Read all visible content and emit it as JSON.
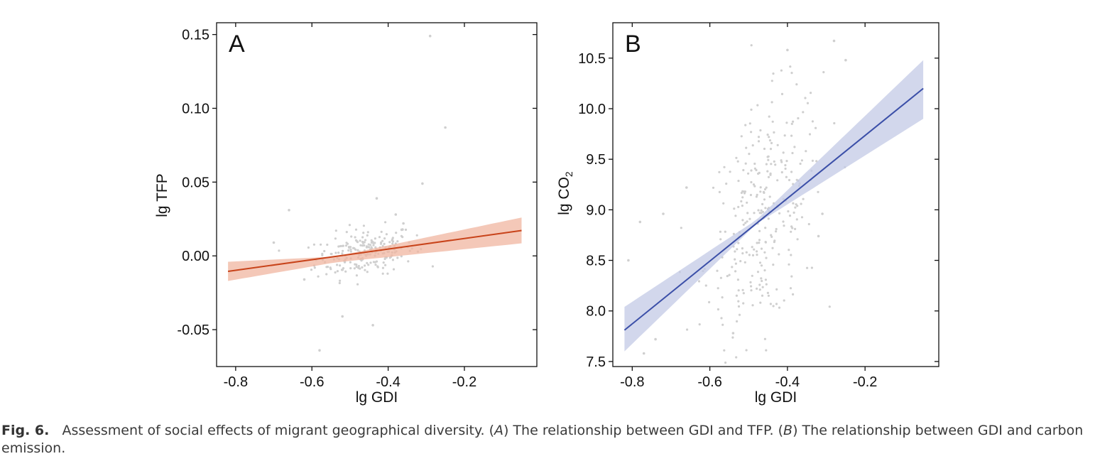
{
  "caption": {
    "label": "Fig. 6.",
    "part1": "Assessment of social effects of migrant geographical diversity. (",
    "tag_a": "A",
    "part2": ") The relationship between GDI and TFP. (",
    "tag_b": "B",
    "part3": ") The relationship between GDI and carbon emission."
  },
  "chart_data": [
    {
      "type": "scatter",
      "panel_label": "A",
      "xlabel": "lg GDI",
      "ylabel": "lg TFP",
      "ylabel_subscript": "",
      "xlim": [
        -0.85,
        -0.01
      ],
      "ylim": [
        -0.075,
        0.158
      ],
      "x_ticks": [
        -0.8,
        -0.6,
        -0.4,
        -0.2
      ],
      "x_tick_labels": [
        "-0.8",
        "-0.6",
        "-0.4",
        "-0.2"
      ],
      "y_ticks": [
        -0.05,
        0.0,
        0.05,
        0.1,
        0.15
      ],
      "y_tick_labels": [
        "-0.05",
        "0.00",
        "0.05",
        "0.10",
        "0.15"
      ],
      "fit_line": {
        "x": [
          -0.82,
          -0.05
        ],
        "y": [
          -0.0105,
          0.0172
        ],
        "color": "#c8431a"
      },
      "confidence_band": {
        "x": [
          -0.82,
          -0.54,
          -0.05
        ],
        "lower": [
          -0.017,
          -0.0045,
          0.0085
        ],
        "upper": [
          -0.004,
          -0.0005,
          0.026
        ],
        "color": "#f0b5a0"
      },
      "points_color": "#cfcfcf",
      "cluster": {
        "center": [
          -0.46,
          0.0
        ],
        "spread": [
          0.065,
          0.008
        ],
        "count": 220
      },
      "points": [
        {
          "x": -0.29,
          "y": 0.149
        },
        {
          "x": -0.25,
          "y": 0.087
        },
        {
          "x": -0.31,
          "y": 0.049
        },
        {
          "x": -0.66,
          "y": 0.031
        },
        {
          "x": -0.43,
          "y": 0.039
        },
        {
          "x": -0.38,
          "y": 0.028
        },
        {
          "x": -0.52,
          "y": -0.041
        },
        {
          "x": -0.44,
          "y": -0.047
        },
        {
          "x": -0.58,
          "y": -0.064
        },
        {
          "x": -0.7,
          "y": 0.009
        },
        {
          "x": -0.62,
          "y": -0.016
        },
        {
          "x": -0.36,
          "y": 0.022
        }
      ]
    },
    {
      "type": "scatter",
      "panel_label": "B",
      "xlabel": "lg GDI",
      "ylabel": "lg CO",
      "ylabel_subscript": "2",
      "xlim": [
        -0.85,
        -0.01
      ],
      "ylim": [
        7.45,
        10.85
      ],
      "x_ticks": [
        -0.8,
        -0.6,
        -0.4,
        -0.2
      ],
      "x_tick_labels": [
        "-0.8",
        "-0.6",
        "-0.4",
        "-0.2"
      ],
      "y_ticks": [
        7.5,
        8.0,
        8.5,
        9.0,
        9.5,
        10.0,
        10.5
      ],
      "y_tick_labels": [
        "7.5",
        "8.0",
        "8.5",
        "9.0",
        "9.5",
        "10.0",
        "10.5"
      ],
      "fit_line": {
        "x": [
          -0.82,
          -0.05
        ],
        "y": [
          7.81,
          10.2
        ],
        "color": "#3b4fa8"
      },
      "confidence_band": {
        "x": [
          -0.82,
          -0.48,
          -0.05
        ],
        "lower": [
          7.6,
          8.86,
          9.9
        ],
        "upper": [
          8.04,
          8.9,
          10.48
        ],
        "color": "#c3cae6"
      },
      "points_color": "#cfcfcf",
      "cluster": {
        "center": [
          -0.46,
          8.9
        ],
        "spread": [
          0.075,
          0.55
        ],
        "count": 300
      },
      "points": [
        {
          "x": -0.28,
          "y": 10.67
        },
        {
          "x": -0.25,
          "y": 10.48
        },
        {
          "x": -0.4,
          "y": 10.58
        },
        {
          "x": -0.81,
          "y": 8.5
        },
        {
          "x": -0.78,
          "y": 8.88
        },
        {
          "x": -0.72,
          "y": 8.96
        },
        {
          "x": -0.74,
          "y": 7.72
        },
        {
          "x": -0.77,
          "y": 7.58
        },
        {
          "x": -0.66,
          "y": 9.22
        },
        {
          "x": -0.31,
          "y": 8.96
        },
        {
          "x": -0.32,
          "y": 8.74
        },
        {
          "x": -0.54,
          "y": 7.78
        }
      ]
    }
  ]
}
